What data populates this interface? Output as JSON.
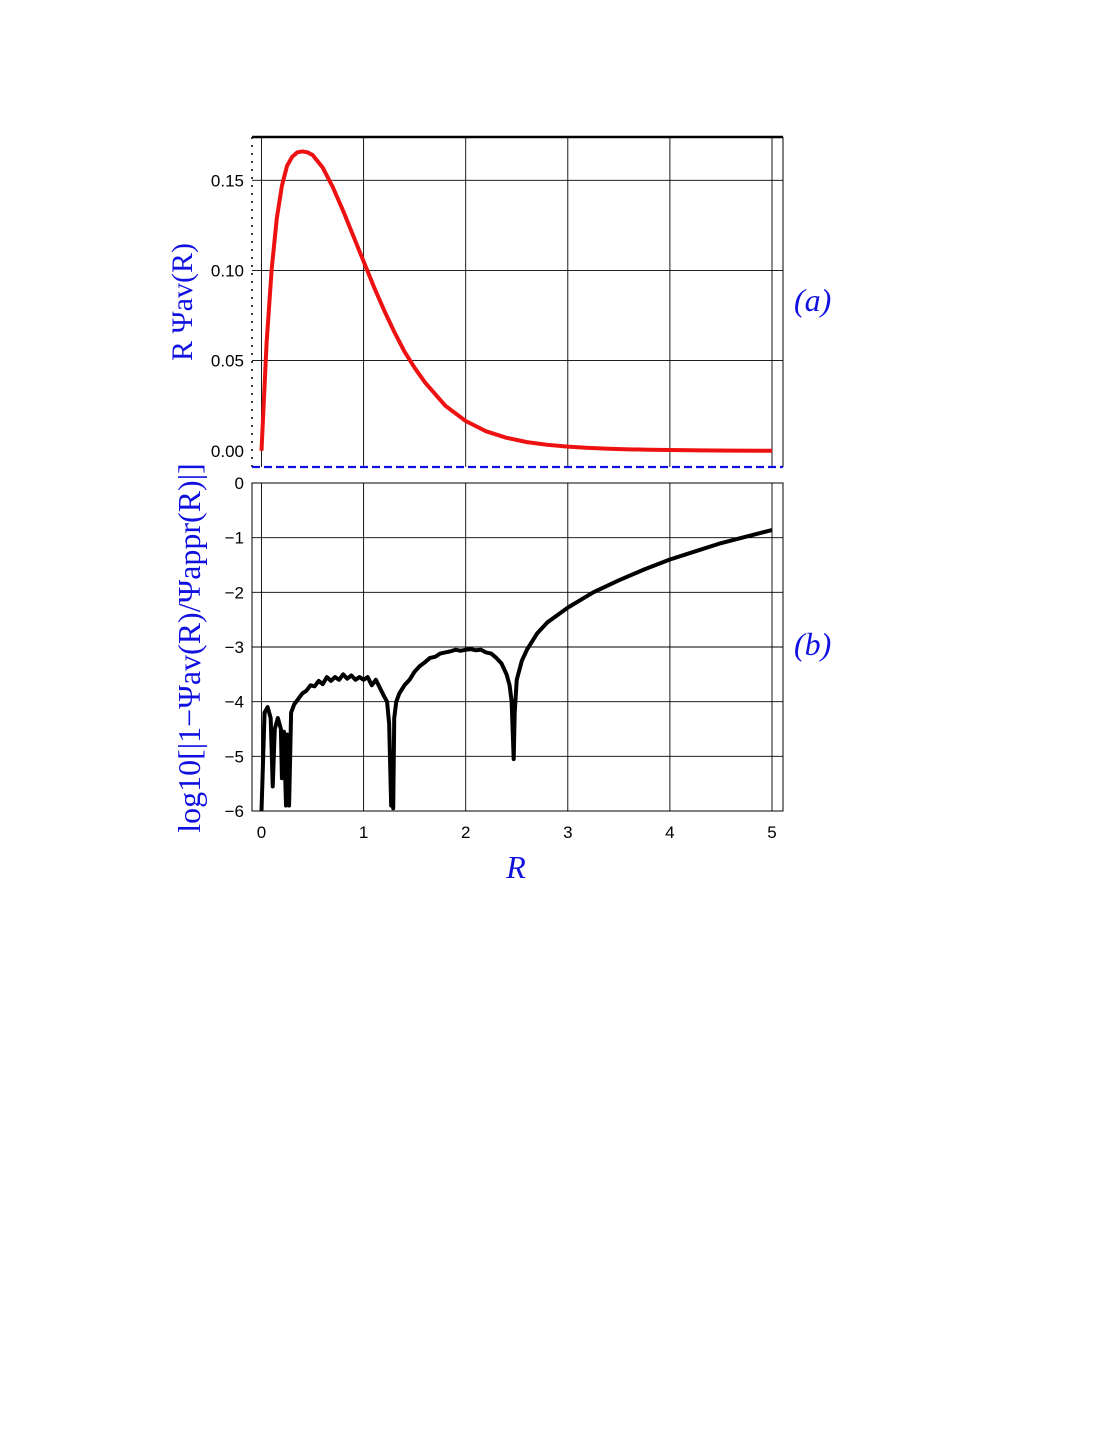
{
  "chart_data": [
    {
      "type": "line",
      "panel_label": "(a)",
      "ylabel": "R Ψav(R)",
      "xlabel": "",
      "xlim": [
        0,
        5
      ],
      "ylim": [
        -0.009,
        0.174
      ],
      "x_ticks": [
        "0",
        "1",
        "2",
        "3",
        "4",
        "5"
      ],
      "y_ticks": [
        0.0,
        0.05,
        0.1,
        0.15
      ],
      "y_tick_labels": [
        "0.00",
        "0.05",
        "0.10",
        "0.15"
      ],
      "grid": true,
      "colors": {
        "curve": "#ee1111",
        "baseline": "#1010e0"
      },
      "series": [
        {
          "x": [
            0,
            0.05,
            0.1,
            0.15,
            0.2,
            0.25,
            0.3,
            0.35,
            0.4,
            0.45,
            0.5,
            0.6,
            0.7,
            0.8,
            0.9,
            1.0,
            1.1,
            1.2,
            1.3,
            1.4,
            1.5,
            1.6,
            1.8,
            2.0,
            2.2,
            2.4,
            2.6,
            2.8,
            3.0,
            3.2,
            3.4,
            3.6,
            3.8,
            4.0,
            4.3,
            4.6,
            5.0
          ],
          "y": [
            0,
            0.06,
            0.101,
            0.129,
            0.147,
            0.158,
            0.163,
            0.1655,
            0.166,
            0.1655,
            0.164,
            0.157,
            0.146,
            0.133,
            0.119,
            0.105,
            0.091,
            0.078,
            0.066,
            0.055,
            0.046,
            0.038,
            0.025,
            0.0165,
            0.0108,
            0.0072,
            0.0048,
            0.0033,
            0.0023,
            0.0016,
            0.0011,
            0.0008,
            0.0006,
            0.0004,
            0.0002,
            0.0001,
            0.0
          ]
        }
      ]
    },
    {
      "type": "line",
      "panel_label": "(b)",
      "ylabel": "log10[|1−Ψav(R)/Ψappr(R)|]",
      "xlabel": "R",
      "xlim": [
        0,
        5
      ],
      "ylim": [
        -6,
        0
      ],
      "x_ticks": [
        "0",
        "1",
        "2",
        "3",
        "4",
        "5"
      ],
      "y_ticks": [
        0,
        -1,
        -2,
        -3,
        -4,
        -5,
        -6
      ],
      "y_tick_labels": [
        "0",
        "−1",
        "−2",
        "−3",
        "−4",
        "−5",
        "−6"
      ],
      "grid": true,
      "colors": {
        "curve": "#000000"
      },
      "series": [
        {
          "x": [
            0.0,
            0.03,
            0.06,
            0.09,
            0.11,
            0.13,
            0.16,
            0.19,
            0.2,
            0.22,
            0.24,
            0.25,
            0.27,
            0.29,
            0.32,
            0.36,
            0.4,
            0.44,
            0.48,
            0.52,
            0.56,
            0.6,
            0.64,
            0.68,
            0.72,
            0.76,
            0.8,
            0.84,
            0.88,
            0.92,
            0.96,
            1.0,
            1.04,
            1.08,
            1.12,
            1.16,
            1.2,
            1.23,
            1.25,
            1.27,
            1.28,
            1.29,
            1.3,
            1.32,
            1.35,
            1.4,
            1.45,
            1.5,
            1.55,
            1.6,
            1.65,
            1.7,
            1.75,
            1.8,
            1.85,
            1.9,
            1.95,
            2.0,
            2.05,
            2.1,
            2.15,
            2.2,
            2.25,
            2.3,
            2.35,
            2.4,
            2.43,
            2.45,
            2.47,
            2.48,
            2.5,
            2.55,
            2.6,
            2.7,
            2.8,
            3.0,
            3.25,
            3.5,
            3.75,
            4.0,
            4.25,
            4.5,
            4.75,
            5.0
          ],
          "y": [
            -6.0,
            -4.2,
            -4.1,
            -4.3,
            -5.55,
            -4.5,
            -4.3,
            -4.5,
            -5.4,
            -4.55,
            -5.9,
            -4.6,
            -5.9,
            -4.2,
            -4.05,
            -3.95,
            -3.85,
            -3.8,
            -3.7,
            -3.72,
            -3.62,
            -3.68,
            -3.55,
            -3.62,
            -3.55,
            -3.6,
            -3.5,
            -3.58,
            -3.52,
            -3.6,
            -3.55,
            -3.6,
            -3.55,
            -3.7,
            -3.6,
            -3.75,
            -3.9,
            -4.0,
            -4.4,
            -5.9,
            -5.1,
            -5.95,
            -4.3,
            -4.0,
            -3.85,
            -3.7,
            -3.6,
            -3.45,
            -3.35,
            -3.28,
            -3.2,
            -3.18,
            -3.12,
            -3.1,
            -3.08,
            -3.05,
            -3.07,
            -3.05,
            -3.04,
            -3.06,
            -3.05,
            -3.1,
            -3.12,
            -3.2,
            -3.3,
            -3.5,
            -3.7,
            -4.0,
            -5.05,
            -4.2,
            -3.6,
            -3.25,
            -3.05,
            -2.75,
            -2.55,
            -2.28,
            -2.0,
            -1.78,
            -1.58,
            -1.4,
            -1.25,
            -1.1,
            -0.98,
            -0.86
          ]
        }
      ]
    }
  ]
}
